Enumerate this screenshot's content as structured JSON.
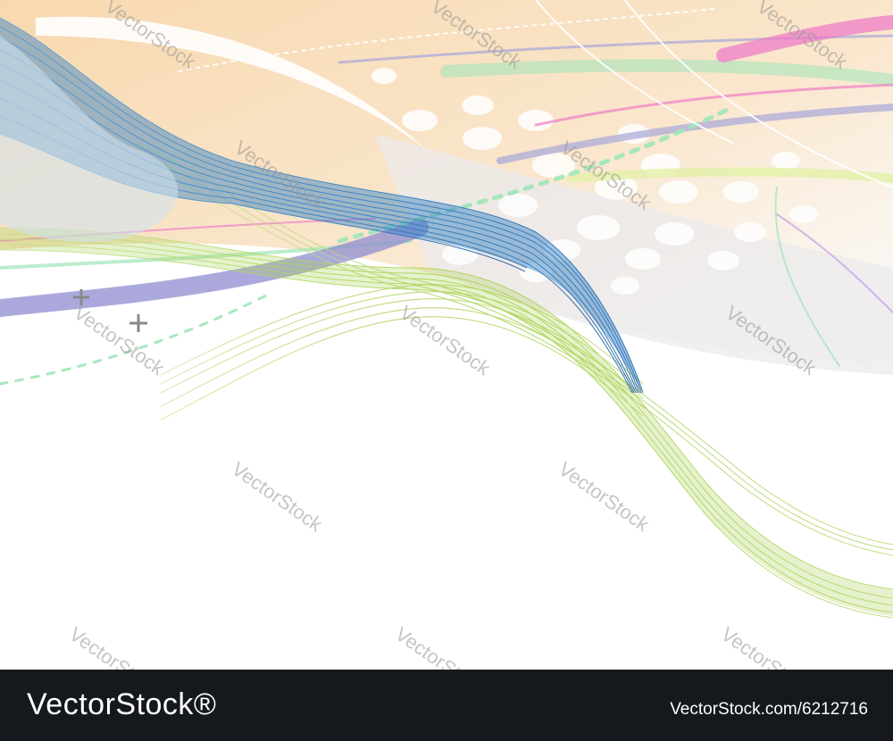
{
  "artwork": {
    "colors": {
      "peach": "#f7d9b0",
      "blue": "#2f7ec4",
      "green": "#a6cf4a",
      "lavender": "#a8a6d8",
      "mint": "#9ee6b8",
      "pink": "#ee7ec8"
    },
    "watermark_text": "VectorStock"
  },
  "footer": {
    "brand": "VectorStock®",
    "url": "VectorStock.com/6212716"
  }
}
